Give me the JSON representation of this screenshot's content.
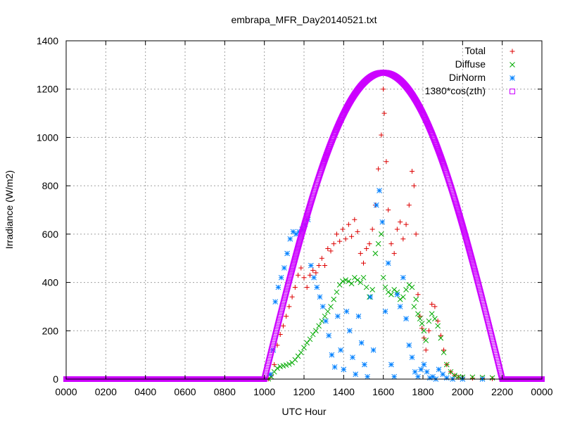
{
  "chart_data": {
    "type": "scatter",
    "title": "embrapa_MFR_Day20140521.txt",
    "xlabel": "UTC Hour",
    "ylabel": "Irradiance (W/m2)",
    "xlim": [
      0,
      24
    ],
    "ylim": [
      0,
      1400
    ],
    "xticks": [
      {
        "v": 0,
        "label": "0000"
      },
      {
        "v": 2,
        "label": "0200"
      },
      {
        "v": 4,
        "label": "0400"
      },
      {
        "v": 6,
        "label": "0600"
      },
      {
        "v": 8,
        "label": "0800"
      },
      {
        "v": 10,
        "label": "1000"
      },
      {
        "v": 12,
        "label": "1200"
      },
      {
        "v": 14,
        "label": "1400"
      },
      {
        "v": 16,
        "label": "1600"
      },
      {
        "v": 18,
        "label": "1800"
      },
      {
        "v": 20,
        "label": "2000"
      },
      {
        "v": 22,
        "label": "2200"
      },
      {
        "v": 24,
        "label": "0000"
      }
    ],
    "yticks": [
      0,
      200,
      400,
      600,
      800,
      1000,
      1200,
      1400
    ],
    "grid": true,
    "legend_position": "top-right",
    "series": [
      {
        "name": "Total",
        "marker": "plus",
        "color": "#dd0000",
        "points": [
          [
            10.2,
            1
          ],
          [
            10.35,
            15
          ],
          [
            10.5,
            60
          ],
          [
            10.65,
            140
          ],
          [
            10.8,
            185
          ],
          [
            10.95,
            220
          ],
          [
            11.1,
            260
          ],
          [
            11.25,
            300
          ],
          [
            11.4,
            340
          ],
          [
            11.55,
            380
          ],
          [
            11.7,
            430
          ],
          [
            11.85,
            460
          ],
          [
            12.0,
            420
          ],
          [
            12.15,
            380
          ],
          [
            12.3,
            430
          ],
          [
            12.45,
            450
          ],
          [
            12.6,
            440
          ],
          [
            12.75,
            470
          ],
          [
            12.9,
            500
          ],
          [
            13.05,
            470
          ],
          [
            13.2,
            540
          ],
          [
            13.35,
            530
          ],
          [
            13.5,
            560
          ],
          [
            13.65,
            600
          ],
          [
            13.8,
            570
          ],
          [
            13.95,
            620
          ],
          [
            14.1,
            580
          ],
          [
            14.25,
            640
          ],
          [
            14.4,
            590
          ],
          [
            14.55,
            660
          ],
          [
            14.7,
            610
          ],
          [
            14.85,
            520
          ],
          [
            15.0,
            480
          ],
          [
            15.15,
            540
          ],
          [
            15.3,
            560
          ],
          [
            15.45,
            620
          ],
          [
            15.6,
            720
          ],
          [
            15.75,
            870
          ],
          [
            15.9,
            1010
          ],
          [
            16.0,
            1200
          ],
          [
            16.05,
            1100
          ],
          [
            16.15,
            900
          ],
          [
            16.25,
            700
          ],
          [
            16.4,
            560
          ],
          [
            16.55,
            520
          ],
          [
            16.7,
            620
          ],
          [
            16.85,
            650
          ],
          [
            17.0,
            580
          ],
          [
            17.15,
            640
          ],
          [
            17.3,
            720
          ],
          [
            17.45,
            860
          ],
          [
            17.55,
            800
          ],
          [
            17.65,
            600
          ],
          [
            17.75,
            350
          ],
          [
            17.85,
            260
          ],
          [
            17.95,
            210
          ],
          [
            18.05,
            170
          ],
          [
            18.15,
            120
          ],
          [
            18.3,
            200
          ],
          [
            18.45,
            310
          ],
          [
            18.6,
            300
          ],
          [
            18.75,
            240
          ],
          [
            18.9,
            180
          ],
          [
            19.05,
            120
          ],
          [
            19.2,
            60
          ],
          [
            19.4,
            30
          ],
          [
            19.6,
            15
          ],
          [
            19.8,
            8
          ],
          [
            20.0,
            5
          ],
          [
            20.5,
            4
          ],
          [
            21.0,
            3
          ],
          [
            21.5,
            2
          ],
          [
            22.0,
            0
          ]
        ]
      },
      {
        "name": "Diffuse",
        "marker": "x",
        "color": "#00aa00",
        "points": [
          [
            10.2,
            1
          ],
          [
            10.35,
            10
          ],
          [
            10.5,
            30
          ],
          [
            10.65,
            45
          ],
          [
            10.8,
            52
          ],
          [
            10.95,
            55
          ],
          [
            11.1,
            58
          ],
          [
            11.25,
            62
          ],
          [
            11.4,
            68
          ],
          [
            11.55,
            80
          ],
          [
            11.7,
            95
          ],
          [
            11.85,
            110
          ],
          [
            12.0,
            130
          ],
          [
            12.15,
            150
          ],
          [
            12.3,
            165
          ],
          [
            12.45,
            185
          ],
          [
            12.6,
            200
          ],
          [
            12.75,
            220
          ],
          [
            12.9,
            240
          ],
          [
            13.05,
            260
          ],
          [
            13.2,
            280
          ],
          [
            13.35,
            300
          ],
          [
            13.5,
            330
          ],
          [
            13.65,
            360
          ],
          [
            13.8,
            390
          ],
          [
            13.95,
            405
          ],
          [
            14.1,
            410
          ],
          [
            14.25,
            405
          ],
          [
            14.4,
            395
          ],
          [
            14.55,
            420
          ],
          [
            14.7,
            410
          ],
          [
            14.85,
            400
          ],
          [
            15.0,
            420
          ],
          [
            15.15,
            380
          ],
          [
            15.3,
            340
          ],
          [
            15.45,
            370
          ],
          [
            15.6,
            520
          ],
          [
            15.75,
            560
          ],
          [
            15.9,
            600
          ],
          [
            16.0,
            420
          ],
          [
            16.1,
            380
          ],
          [
            16.25,
            360
          ],
          [
            16.4,
            350
          ],
          [
            16.55,
            370
          ],
          [
            16.7,
            360
          ],
          [
            16.85,
            330
          ],
          [
            17.0,
            340
          ],
          [
            17.15,
            370
          ],
          [
            17.3,
            390
          ],
          [
            17.45,
            380
          ],
          [
            17.55,
            300
          ],
          [
            17.65,
            330
          ],
          [
            17.75,
            270
          ],
          [
            17.85,
            250
          ],
          [
            17.95,
            230
          ],
          [
            18.05,
            200
          ],
          [
            18.15,
            160
          ],
          [
            18.3,
            240
          ],
          [
            18.45,
            270
          ],
          [
            18.6,
            250
          ],
          [
            18.75,
            220
          ],
          [
            18.9,
            170
          ],
          [
            19.05,
            110
          ],
          [
            19.2,
            60
          ],
          [
            19.4,
            30
          ],
          [
            19.6,
            15
          ],
          [
            19.8,
            10
          ],
          [
            20.0,
            8
          ],
          [
            20.5,
            8
          ],
          [
            21.0,
            7
          ],
          [
            21.5,
            5
          ],
          [
            22.0,
            0
          ]
        ]
      },
      {
        "name": "DirNorm",
        "marker": "star",
        "color": "#0080ff",
        "points": [
          [
            10.3,
            20
          ],
          [
            10.45,
            120
          ],
          [
            10.55,
            320
          ],
          [
            10.7,
            380
          ],
          [
            10.85,
            420
          ],
          [
            11.0,
            460
          ],
          [
            11.15,
            520
          ],
          [
            11.3,
            580
          ],
          [
            11.45,
            610
          ],
          [
            11.6,
            600
          ],
          [
            11.75,
            610
          ],
          [
            11.9,
            620
          ],
          [
            12.05,
            640
          ],
          [
            12.2,
            660
          ],
          [
            12.35,
            470
          ],
          [
            12.5,
            420
          ],
          [
            12.65,
            380
          ],
          [
            12.8,
            340
          ],
          [
            12.95,
            300
          ],
          [
            13.1,
            240
          ],
          [
            13.25,
            180
          ],
          [
            13.4,
            100
          ],
          [
            13.55,
            50
          ],
          [
            13.7,
            260
          ],
          [
            13.85,
            120
          ],
          [
            14.0,
            40
          ],
          [
            14.15,
            280
          ],
          [
            14.3,
            200
          ],
          [
            14.45,
            90
          ],
          [
            14.6,
            20
          ],
          [
            14.75,
            260
          ],
          [
            14.9,
            150
          ],
          [
            15.05,
            60
          ],
          [
            15.2,
            10
          ],
          [
            15.35,
            340
          ],
          [
            15.5,
            120
          ],
          [
            15.65,
            720
          ],
          [
            15.8,
            780
          ],
          [
            15.95,
            650
          ],
          [
            16.1,
            280
          ],
          [
            16.25,
            480
          ],
          [
            16.4,
            60
          ],
          [
            16.55,
            10
          ],
          [
            16.7,
            350
          ],
          [
            16.85,
            300
          ],
          [
            17.0,
            420
          ],
          [
            17.15,
            250
          ],
          [
            17.3,
            140
          ],
          [
            17.45,
            90
          ],
          [
            17.6,
            30
          ],
          [
            17.75,
            10
          ],
          [
            17.9,
            40
          ],
          [
            18.05,
            60
          ],
          [
            18.2,
            30
          ],
          [
            18.35,
            5
          ],
          [
            18.5,
            10
          ],
          [
            18.65,
            0
          ],
          [
            18.8,
            40
          ],
          [
            19.0,
            20
          ],
          [
            19.2,
            5
          ],
          [
            19.5,
            0
          ],
          [
            20.0,
            0
          ],
          [
            21.0,
            0
          ],
          [
            22.0,
            0
          ]
        ]
      },
      {
        "name": "1380*cos(zth)",
        "marker": "square",
        "color": "#cc00ff",
        "model": {
          "peak_hour": 16.0,
          "peak": 1268,
          "half_width_hours": 6.0,
          "min_hour": 0,
          "max_hour": 24,
          "step_hours": 0.02
        }
      }
    ]
  }
}
